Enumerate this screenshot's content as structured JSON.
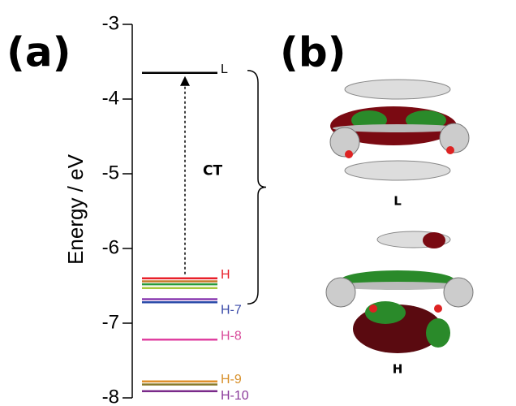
{
  "chart_data": {
    "type": "energy-levels",
    "panel_label": "(a)",
    "ylabel": "Energy / eV",
    "ylim": [
      -8,
      -3
    ],
    "yticks": [
      -3,
      -4,
      -5,
      -6,
      -7,
      -8
    ],
    "annotation": "CT",
    "levels": [
      {
        "label": "L",
        "value": -3.65,
        "color": "#000000",
        "label_color": "#000000"
      },
      {
        "label": "H",
        "value": -6.4,
        "color": "#e8202a",
        "label_color": "#e8202a"
      },
      {
        "label": null,
        "value": -6.44,
        "color": "#c8782a"
      },
      {
        "label": null,
        "value": -6.48,
        "color": "#2a9a3a"
      },
      {
        "label": null,
        "value": -6.53,
        "color": "#a8c83a"
      },
      {
        "label": null,
        "value": -6.68,
        "color": "#8a3ab0"
      },
      {
        "label": "H-7",
        "value": -6.72,
        "color": "#2a4aa8",
        "label_color": "#3a4aa8"
      },
      {
        "label": "H-8",
        "value": -7.22,
        "color": "#e040a0",
        "label_color": "#d84a9a"
      },
      {
        "label": "H-9",
        "value": -7.78,
        "color": "#e0902a",
        "label_color": "#d8902a"
      },
      {
        "label": null,
        "value": -7.82,
        "color": "#8a7a2a"
      },
      {
        "label": "H-10",
        "value": -7.91,
        "color": "#7a2a8a",
        "label_color": "#8a3a9a"
      }
    ]
  },
  "panel_b": {
    "panel_label": "(b)",
    "orbital_labels": [
      "L",
      "H"
    ]
  }
}
